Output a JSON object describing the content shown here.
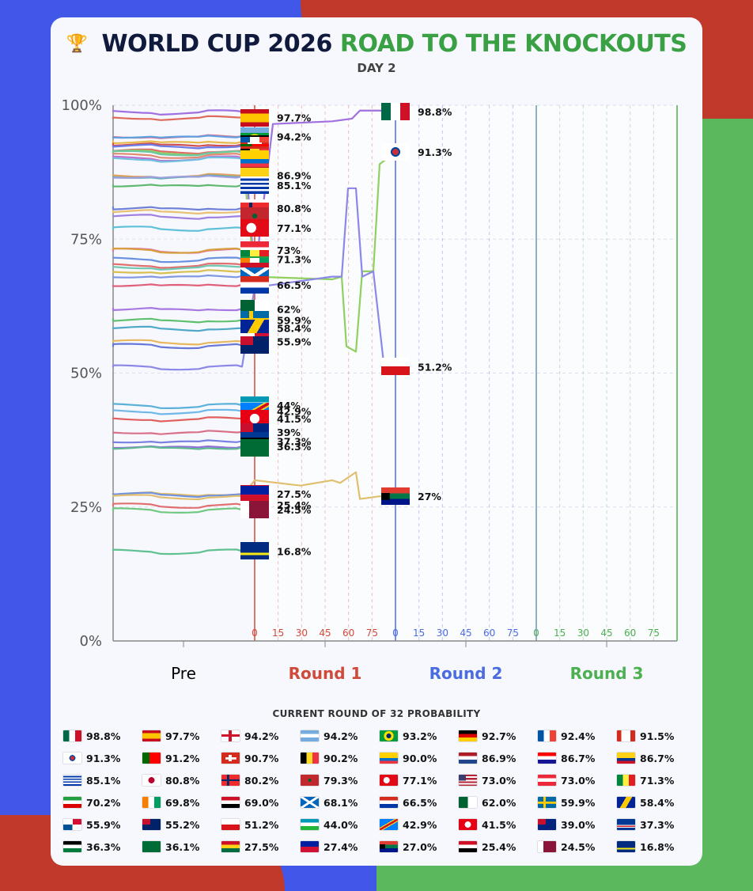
{
  "title": {
    "part1": "WORLD CUP 2026",
    "part2": "ROAD TO THE KNOCKOUTS",
    "subtitle": "DAY 2"
  },
  "legend_title": "CURRENT ROUND OF 32 PROBABILITY",
  "colors": {
    "round1": "#d04a3a",
    "round2": "#4b6be0",
    "round3": "#4caf50",
    "title_green": "#3aa044",
    "title_navy": "#0f1a3d"
  },
  "chart_data": {
    "type": "line",
    "ylabel": "",
    "ylim": [
      0,
      100
    ],
    "y_ticks": [
      "0%",
      "25%",
      "50%",
      "75%",
      "100%"
    ],
    "sections": [
      {
        "name": "Pre",
        "minute_ticks": []
      },
      {
        "name": "Round 1",
        "minute_ticks": [
          "0",
          "15",
          "30",
          "45",
          "60",
          "75"
        ]
      },
      {
        "name": "Round 2",
        "minute_ticks": [
          "0",
          "15",
          "30",
          "45",
          "60",
          "75"
        ]
      },
      {
        "name": "Round 3",
        "minute_ticks": [
          "0",
          "15",
          "30",
          "45",
          "60",
          "75"
        ]
      }
    ],
    "series": [
      {
        "name": "Mexico",
        "value": 98.8,
        "label": "98.8%",
        "stage": "round2",
        "color": "#a070e0",
        "flag": "mexico"
      },
      {
        "name": "Spain",
        "value": 97.7,
        "label": "97.7%",
        "stage": "round1",
        "color": "#e06a5a",
        "flag": "spain"
      },
      {
        "name": "England",
        "value": 94.2,
        "label": "94.2%",
        "stage": "round1",
        "color": "#e0708c",
        "flag": "england"
      },
      {
        "name": "Argentina",
        "value": 94.2,
        "label": "",
        "stage": "round1",
        "color": "#5fa0e0",
        "flag": "argentina"
      },
      {
        "name": "Brazil",
        "value": 93.2,
        "label": "",
        "stage": "round1",
        "color": "#e8b84a",
        "flag": "brazil"
      },
      {
        "name": "Germany",
        "value": 92.7,
        "label": "",
        "stage": "round1",
        "color": "#d05050",
        "flag": "germany"
      },
      {
        "name": "France",
        "value": 92.4,
        "label": "",
        "stage": "round1",
        "color": "#6a7ae8",
        "flag": "france"
      },
      {
        "name": "Canada",
        "value": 91.5,
        "label": "",
        "stage": "round1",
        "color": "#e06a6a",
        "flag": "canada"
      },
      {
        "name": "South Korea",
        "value": 91.3,
        "label": "91.3%",
        "stage": "round2",
        "color": "#8fd060",
        "flag": "korea"
      },
      {
        "name": "Portugal",
        "value": 91.2,
        "label": "",
        "stage": "round1",
        "color": "#6ac8a0",
        "flag": "portugal"
      },
      {
        "name": "Switzerland",
        "value": 90.7,
        "label": "",
        "stage": "round1",
        "color": "#e08a70",
        "flag": "switzerland"
      },
      {
        "name": "Belgium",
        "value": 90.2,
        "label": "",
        "stage": "round1",
        "color": "#c070d0",
        "flag": "belgium"
      },
      {
        "name": "Ecuador",
        "value": 90.0,
        "label": "",
        "stage": "round1",
        "color": "#70c0e0",
        "flag": "ecuador"
      },
      {
        "name": "Netherlands",
        "value": 86.9,
        "label": "86.9%",
        "stage": "round1",
        "color": "#e0a060",
        "flag": "netherlands"
      },
      {
        "name": "Croatia",
        "value": 86.7,
        "label": "",
        "stage": "round1",
        "color": "#50b0a0",
        "flag": "croatia"
      },
      {
        "name": "Colombia",
        "value": 86.7,
        "label": "",
        "stage": "round1",
        "color": "#9aa0e0",
        "flag": "colombia"
      },
      {
        "name": "Uruguay",
        "value": 85.1,
        "label": "85.1%",
        "stage": "round1",
        "color": "#60b870",
        "flag": "uruguay"
      },
      {
        "name": "Japan",
        "value": 80.8,
        "label": "80.8%",
        "stage": "round1",
        "color": "#7080d8",
        "flag": "japan"
      },
      {
        "name": "Norway",
        "value": 80.2,
        "label": "",
        "stage": "round1",
        "color": "#e8c070",
        "flag": "norway"
      },
      {
        "name": "Morocco",
        "value": 79.3,
        "label": "",
        "stage": "round1",
        "color": "#a080e0",
        "flag": "morocco"
      },
      {
        "name": "Turkey",
        "value": 77.1,
        "label": "77.1%",
        "stage": "round1",
        "color": "#60c0d8",
        "flag": "turkey"
      },
      {
        "name": "USA",
        "value": 73.0,
        "label": "73%",
        "stage": "round1",
        "color": "#e070a0",
        "flag": "usa"
      },
      {
        "name": "Austria",
        "value": 73.0,
        "label": "",
        "stage": "round1",
        "color": "#d8a040",
        "flag": "austria"
      },
      {
        "name": "Senegal",
        "value": 71.3,
        "label": "71.3%",
        "stage": "round1",
        "color": "#6a90e0",
        "flag": "senegal"
      },
      {
        "name": "Iran",
        "value": 70.2,
        "label": "",
        "stage": "round1",
        "color": "#e07070",
        "flag": "iran"
      },
      {
        "name": "Ivory Coast",
        "value": 69.8,
        "label": "",
        "stage": "round1",
        "color": "#70c8b0",
        "flag": "ivorycoast"
      },
      {
        "name": "Egypt",
        "value": 69.0,
        "label": "",
        "stage": "round1",
        "color": "#d8c050",
        "flag": "egypt"
      },
      {
        "name": "Scotland",
        "value": 68.1,
        "label": "",
        "stage": "round1",
        "color": "#8098e0",
        "flag": "scotland"
      },
      {
        "name": "Paraguay",
        "value": 66.5,
        "label": "66.5%",
        "stage": "round1",
        "color": "#e0607a",
        "flag": "paraguay"
      },
      {
        "name": "Algeria",
        "value": 62.0,
        "label": "62%",
        "stage": "round1",
        "color": "#a878e0",
        "flag": "algeria"
      },
      {
        "name": "Sweden",
        "value": 59.9,
        "label": "59.9%",
        "stage": "round1",
        "color": "#60c070",
        "flag": "sweden"
      },
      {
        "name": "Bosnia",
        "value": 58.4,
        "label": "58.4%",
        "stage": "round1",
        "color": "#50a8c8",
        "flag": "bosnia"
      },
      {
        "name": "Panama",
        "value": 55.9,
        "label": "55.9%",
        "stage": "round1",
        "color": "#e8b860",
        "flag": "panama"
      },
      {
        "name": "Australia",
        "value": 55.2,
        "label": "",
        "stage": "round1",
        "color": "#6878d8",
        "flag": "australia"
      },
      {
        "name": "Czechia",
        "value": 51.2,
        "label": "51.2%",
        "stage": "round2",
        "color": "#8c88e8",
        "flag": "czechia"
      },
      {
        "name": "Uzbekistan",
        "value": 44.0,
        "label": "44%",
        "stage": "round1",
        "color": "#5ab0d8",
        "flag": "uzbekistan"
      },
      {
        "name": "DR Congo",
        "value": 42.9,
        "label": "42.9%",
        "stage": "round1",
        "color": "#70b8e8",
        "flag": "drcongo"
      },
      {
        "name": "Tunisia",
        "value": 41.5,
        "label": "41.5%",
        "stage": "round1",
        "color": "#e06060",
        "flag": "tunisia"
      },
      {
        "name": "New Zealand",
        "value": 39.0,
        "label": "39%",
        "stage": "round1",
        "color": "#d87088",
        "flag": "newzealand"
      },
      {
        "name": "Cape Verde",
        "value": 37.3,
        "label": "37.3%",
        "stage": "round1",
        "color": "#7880e0",
        "flag": "capeverde"
      },
      {
        "name": "Jordan",
        "value": 36.3,
        "label": "36.3%",
        "stage": "round1",
        "color": "#9070d8",
        "flag": "jordan"
      },
      {
        "name": "Saudi Arabia",
        "value": 36.1,
        "label": "",
        "stage": "round1",
        "color": "#60b890",
        "flag": "saudi"
      },
      {
        "name": "Ghana",
        "value": 27.5,
        "label": "27.5%",
        "stage": "round1",
        "color": "#e8c060",
        "flag": "ghana"
      },
      {
        "name": "Haiti",
        "value": 27.4,
        "label": "",
        "stage": "round1",
        "color": "#7090e0",
        "flag": "haiti"
      },
      {
        "name": "South Africa",
        "value": 27.0,
        "label": "27%",
        "stage": "round2",
        "color": "#e0c070",
        "flag": "southafrica"
      },
      {
        "name": "Iraq",
        "value": 25.4,
        "label": "25.4%",
        "stage": "round1",
        "color": "#e07070",
        "flag": "iraq"
      },
      {
        "name": "Qatar",
        "value": 24.5,
        "label": "24.5%",
        "stage": "round1",
        "color": "#70c880",
        "flag": "qatar"
      },
      {
        "name": "Curacao",
        "value": 16.8,
        "label": "16.8%",
        "stage": "round1",
        "color": "#60c090",
        "flag": "curacao"
      }
    ]
  },
  "legend": [
    {
      "flag": "mexico",
      "value": "98.8%"
    },
    {
      "flag": "spain",
      "value": "97.7%"
    },
    {
      "flag": "england",
      "value": "94.2%"
    },
    {
      "flag": "argentina",
      "value": "94.2%"
    },
    {
      "flag": "brazil",
      "value": "93.2%"
    },
    {
      "flag": "germany",
      "value": "92.7%"
    },
    {
      "flag": "france",
      "value": "92.4%"
    },
    {
      "flag": "canada",
      "value": "91.5%"
    },
    {
      "flag": "korea",
      "value": "91.3%"
    },
    {
      "flag": "portugal",
      "value": "91.2%"
    },
    {
      "flag": "switzerland",
      "value": "90.7%"
    },
    {
      "flag": "belgium",
      "value": "90.2%"
    },
    {
      "flag": "ecuador",
      "value": "90.0%"
    },
    {
      "flag": "netherlands",
      "value": "86.9%"
    },
    {
      "flag": "croatia",
      "value": "86.7%"
    },
    {
      "flag": "colombia",
      "value": "86.7%"
    },
    {
      "flag": "uruguay",
      "value": "85.1%"
    },
    {
      "flag": "japan",
      "value": "80.8%"
    },
    {
      "flag": "norway",
      "value": "80.2%"
    },
    {
      "flag": "morocco",
      "value": "79.3%"
    },
    {
      "flag": "turkey",
      "value": "77.1%"
    },
    {
      "flag": "usa",
      "value": "73.0%"
    },
    {
      "flag": "austria",
      "value": "73.0%"
    },
    {
      "flag": "senegal",
      "value": "71.3%"
    },
    {
      "flag": "iran",
      "value": "70.2%"
    },
    {
      "flag": "ivorycoast",
      "value": "69.8%"
    },
    {
      "flag": "egypt",
      "value": "69.0%"
    },
    {
      "flag": "scotland",
      "value": "68.1%"
    },
    {
      "flag": "paraguay",
      "value": "66.5%"
    },
    {
      "flag": "algeria",
      "value": "62.0%"
    },
    {
      "flag": "sweden",
      "value": "59.9%"
    },
    {
      "flag": "bosnia",
      "value": "58.4%"
    },
    {
      "flag": "panama",
      "value": "55.9%"
    },
    {
      "flag": "australia",
      "value": "55.2%"
    },
    {
      "flag": "czechia",
      "value": "51.2%"
    },
    {
      "flag": "uzbekistan",
      "value": "44.0%"
    },
    {
      "flag": "drcongo",
      "value": "42.9%"
    },
    {
      "flag": "tunisia",
      "value": "41.5%"
    },
    {
      "flag": "newzealand",
      "value": "39.0%"
    },
    {
      "flag": "capeverde",
      "value": "37.3%"
    },
    {
      "flag": "jordan",
      "value": "36.3%"
    },
    {
      "flag": "saudi",
      "value": "36.1%"
    },
    {
      "flag": "ghana",
      "value": "27.5%"
    },
    {
      "flag": "haiti",
      "value": "27.4%"
    },
    {
      "flag": "southafrica",
      "value": "27.0%"
    },
    {
      "flag": "iraq",
      "value": "25.4%"
    },
    {
      "flag": "qatar",
      "value": "24.5%"
    },
    {
      "flag": "curacao",
      "value": "16.8%"
    }
  ]
}
